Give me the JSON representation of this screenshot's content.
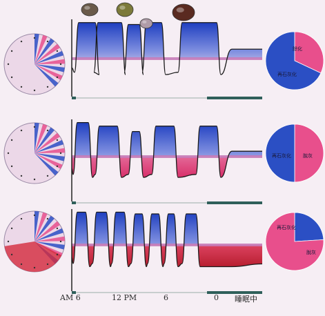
{
  "colors": {
    "background": "#f6eef4",
    "blue": "#2b4fc4",
    "pink": "#e84f8c",
    "red": "#d42a3c",
    "baseline": "#c77bb8",
    "bar": "#2f5f5a",
    "frame": "#222222"
  },
  "food_icons": [
    "pot-icon",
    "bowl-icon",
    "dessert-icon",
    "snack-icon"
  ],
  "x_axis": {
    "ticks": [
      "AM 6",
      "12 PM",
      "6",
      "0",
      "睡眠中"
    ]
  },
  "rows": [
    {
      "name": "row-1",
      "plaque_character": "below-baseline",
      "pie": {
        "slices": [
          {
            "label": "餘化",
            "fraction": 0.32,
            "color": "#e84f8c"
          },
          {
            "label": "再石灰化",
            "fraction": 0.68,
            "color": "#2b4fc4"
          }
        ]
      }
    },
    {
      "name": "row-2",
      "plaque_character": "mid",
      "pie": {
        "slices": [
          {
            "label": "脫灰",
            "fraction": 0.5,
            "color": "#e84f8c"
          },
          {
            "label": "再石灰化",
            "fraction": 0.5,
            "color": "#2b4fc4"
          }
        ]
      }
    },
    {
      "name": "row-3",
      "plaque_character": "acidic",
      "pie": {
        "slices": [
          {
            "label": "再石灰化",
            "fraction": 0.24,
            "color": "#2b4fc4"
          },
          {
            "label": "脫灰",
            "fraction": 0.76,
            "color": "#e84f8c"
          }
        ]
      }
    }
  ]
}
